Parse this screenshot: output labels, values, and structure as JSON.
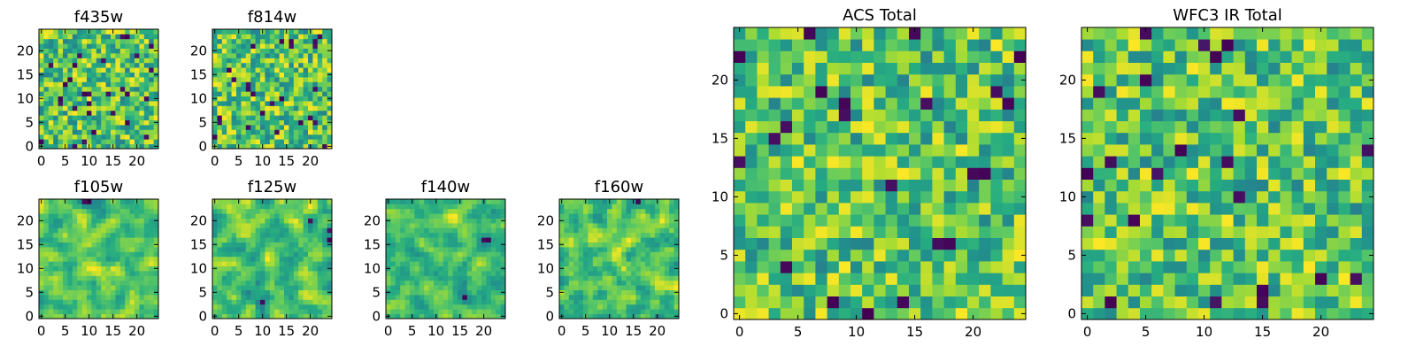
{
  "chart_data": [
    {
      "type": "heatmap",
      "title": "f435w",
      "grid_size": 25,
      "xlim": [
        -0.5,
        24.5
      ],
      "ylim": [
        -0.5,
        24.5
      ],
      "xticks": [
        0,
        5,
        10,
        15,
        20
      ],
      "yticks": [
        0,
        5,
        10,
        15,
        20
      ],
      "xlabel": "",
      "ylabel": "",
      "colormap": "viridis",
      "seed": 11,
      "smooth": 0
    },
    {
      "type": "heatmap",
      "title": "f814w",
      "grid_size": 25,
      "xlim": [
        -0.5,
        24.5
      ],
      "ylim": [
        -0.5,
        24.5
      ],
      "xticks": [
        0,
        5,
        10,
        15,
        20
      ],
      "yticks": [
        0,
        5,
        10,
        15,
        20
      ],
      "xlabel": "",
      "ylabel": "",
      "colormap": "viridis",
      "seed": 23,
      "smooth": 0
    },
    {
      "type": "heatmap",
      "title": "f105w",
      "grid_size": 25,
      "xlim": [
        -0.5,
        24.5
      ],
      "ylim": [
        -0.5,
        24.5
      ],
      "xticks": [
        0,
        5,
        10,
        15,
        20
      ],
      "yticks": [
        0,
        5,
        10,
        15,
        20
      ],
      "xlabel": "",
      "ylabel": "",
      "colormap": "viridis",
      "seed": 37,
      "smooth": 1
    },
    {
      "type": "heatmap",
      "title": "f125w",
      "grid_size": 25,
      "xlim": [
        -0.5,
        24.5
      ],
      "ylim": [
        -0.5,
        24.5
      ],
      "xticks": [
        0,
        5,
        10,
        15,
        20
      ],
      "yticks": [
        0,
        5,
        10,
        15,
        20
      ],
      "xlabel": "",
      "ylabel": "",
      "colormap": "viridis",
      "seed": 41,
      "smooth": 1
    },
    {
      "type": "heatmap",
      "title": "f140w",
      "grid_size": 25,
      "xlim": [
        -0.5,
        24.5
      ],
      "ylim": [
        -0.5,
        24.5
      ],
      "xticks": [
        0,
        5,
        10,
        15,
        20
      ],
      "yticks": [
        0,
        5,
        10,
        15,
        20
      ],
      "xlabel": "",
      "ylabel": "",
      "colormap": "viridis",
      "seed": 53,
      "smooth": 1
    },
    {
      "type": "heatmap",
      "title": "f160w",
      "grid_size": 25,
      "xlim": [
        -0.5,
        24.5
      ],
      "ylim": [
        -0.5,
        24.5
      ],
      "xticks": [
        0,
        5,
        10,
        15,
        20
      ],
      "yticks": [
        0,
        5,
        10,
        15,
        20
      ],
      "xlabel": "",
      "ylabel": "",
      "colormap": "viridis",
      "seed": 67,
      "smooth": 1
    },
    {
      "type": "heatmap",
      "title": "ACS Total",
      "grid_size": 25,
      "xlim": [
        -0.5,
        24.5
      ],
      "ylim": [
        -0.5,
        24.5
      ],
      "xticks": [
        0,
        5,
        10,
        15,
        20
      ],
      "yticks": [
        0,
        5,
        10,
        15,
        20
      ],
      "xlabel": "",
      "ylabel": "",
      "colormap": "viridis",
      "seed": 79,
      "smooth": 0
    },
    {
      "type": "heatmap",
      "title": "WFC3 IR Total",
      "grid_size": 25,
      "xlim": [
        -0.5,
        24.5
      ],
      "ylim": [
        -0.5,
        24.5
      ],
      "xticks": [
        0,
        5,
        10,
        15,
        20
      ],
      "yticks": [
        0,
        5,
        10,
        15,
        20
      ],
      "xlabel": "",
      "ylabel": "",
      "colormap": "viridis",
      "seed": 97,
      "smooth": 0
    }
  ]
}
